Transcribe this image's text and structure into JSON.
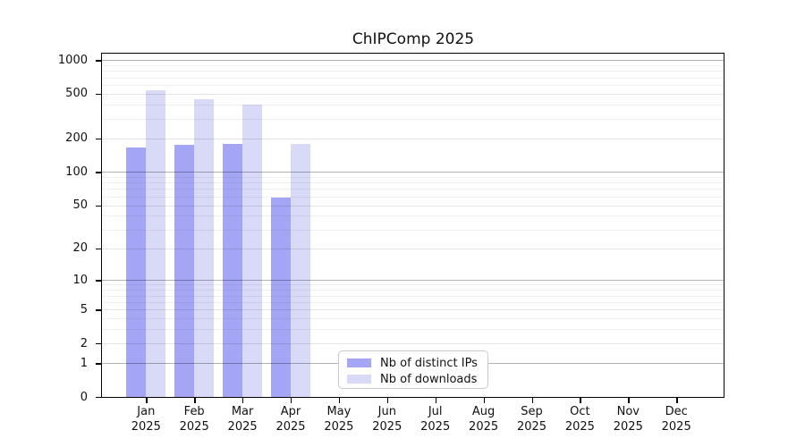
{
  "chart_data": {
    "type": "bar",
    "title": "ChIPComp 2025",
    "categories": [
      {
        "month": "Jan",
        "year": "2025"
      },
      {
        "month": "Feb",
        "year": "2025"
      },
      {
        "month": "Mar",
        "year": "2025"
      },
      {
        "month": "Apr",
        "year": "2025"
      },
      {
        "month": "May",
        "year": "2025"
      },
      {
        "month": "Jun",
        "year": "2025"
      },
      {
        "month": "Jul",
        "year": "2025"
      },
      {
        "month": "Aug",
        "year": "2025"
      },
      {
        "month": "Sep",
        "year": "2025"
      },
      {
        "month": "Oct",
        "year": "2025"
      },
      {
        "month": "Nov",
        "year": "2025"
      },
      {
        "month": "Dec",
        "year": "2025"
      }
    ],
    "series": [
      {
        "name": "Nb of distinct IPs",
        "color": "#a5a5f5",
        "values": [
          165,
          175,
          177,
          59,
          0,
          0,
          0,
          0,
          0,
          0,
          0,
          0
        ]
      },
      {
        "name": "Nb of downloads",
        "color": "#d9d9f8",
        "values": [
          541,
          448,
          403,
          178,
          0,
          0,
          0,
          0,
          0,
          0,
          0,
          0
        ]
      }
    ],
    "y_axis": {
      "scale": "log10(1+v)",
      "ticks": [
        0,
        1,
        2,
        5,
        10,
        20,
        50,
        100,
        200,
        500,
        1000
      ],
      "max_value": 1130
    },
    "grid": {
      "major_values": [
        1,
        10,
        100,
        1000
      ],
      "medium_values": [
        2,
        5,
        20,
        50,
        200,
        500
      ],
      "minor_values": [
        3,
        4,
        6,
        7,
        8,
        9,
        30,
        40,
        60,
        70,
        80,
        90,
        300,
        400,
        600,
        700,
        800,
        900
      ],
      "major_color": "rgba(0,0,0,0.30)",
      "medium_color": "rgba(0,0,0,0.11)",
      "minor_color": "rgba(0,0,0,0.06)"
    },
    "legend": {
      "position": "bottom-center"
    }
  }
}
